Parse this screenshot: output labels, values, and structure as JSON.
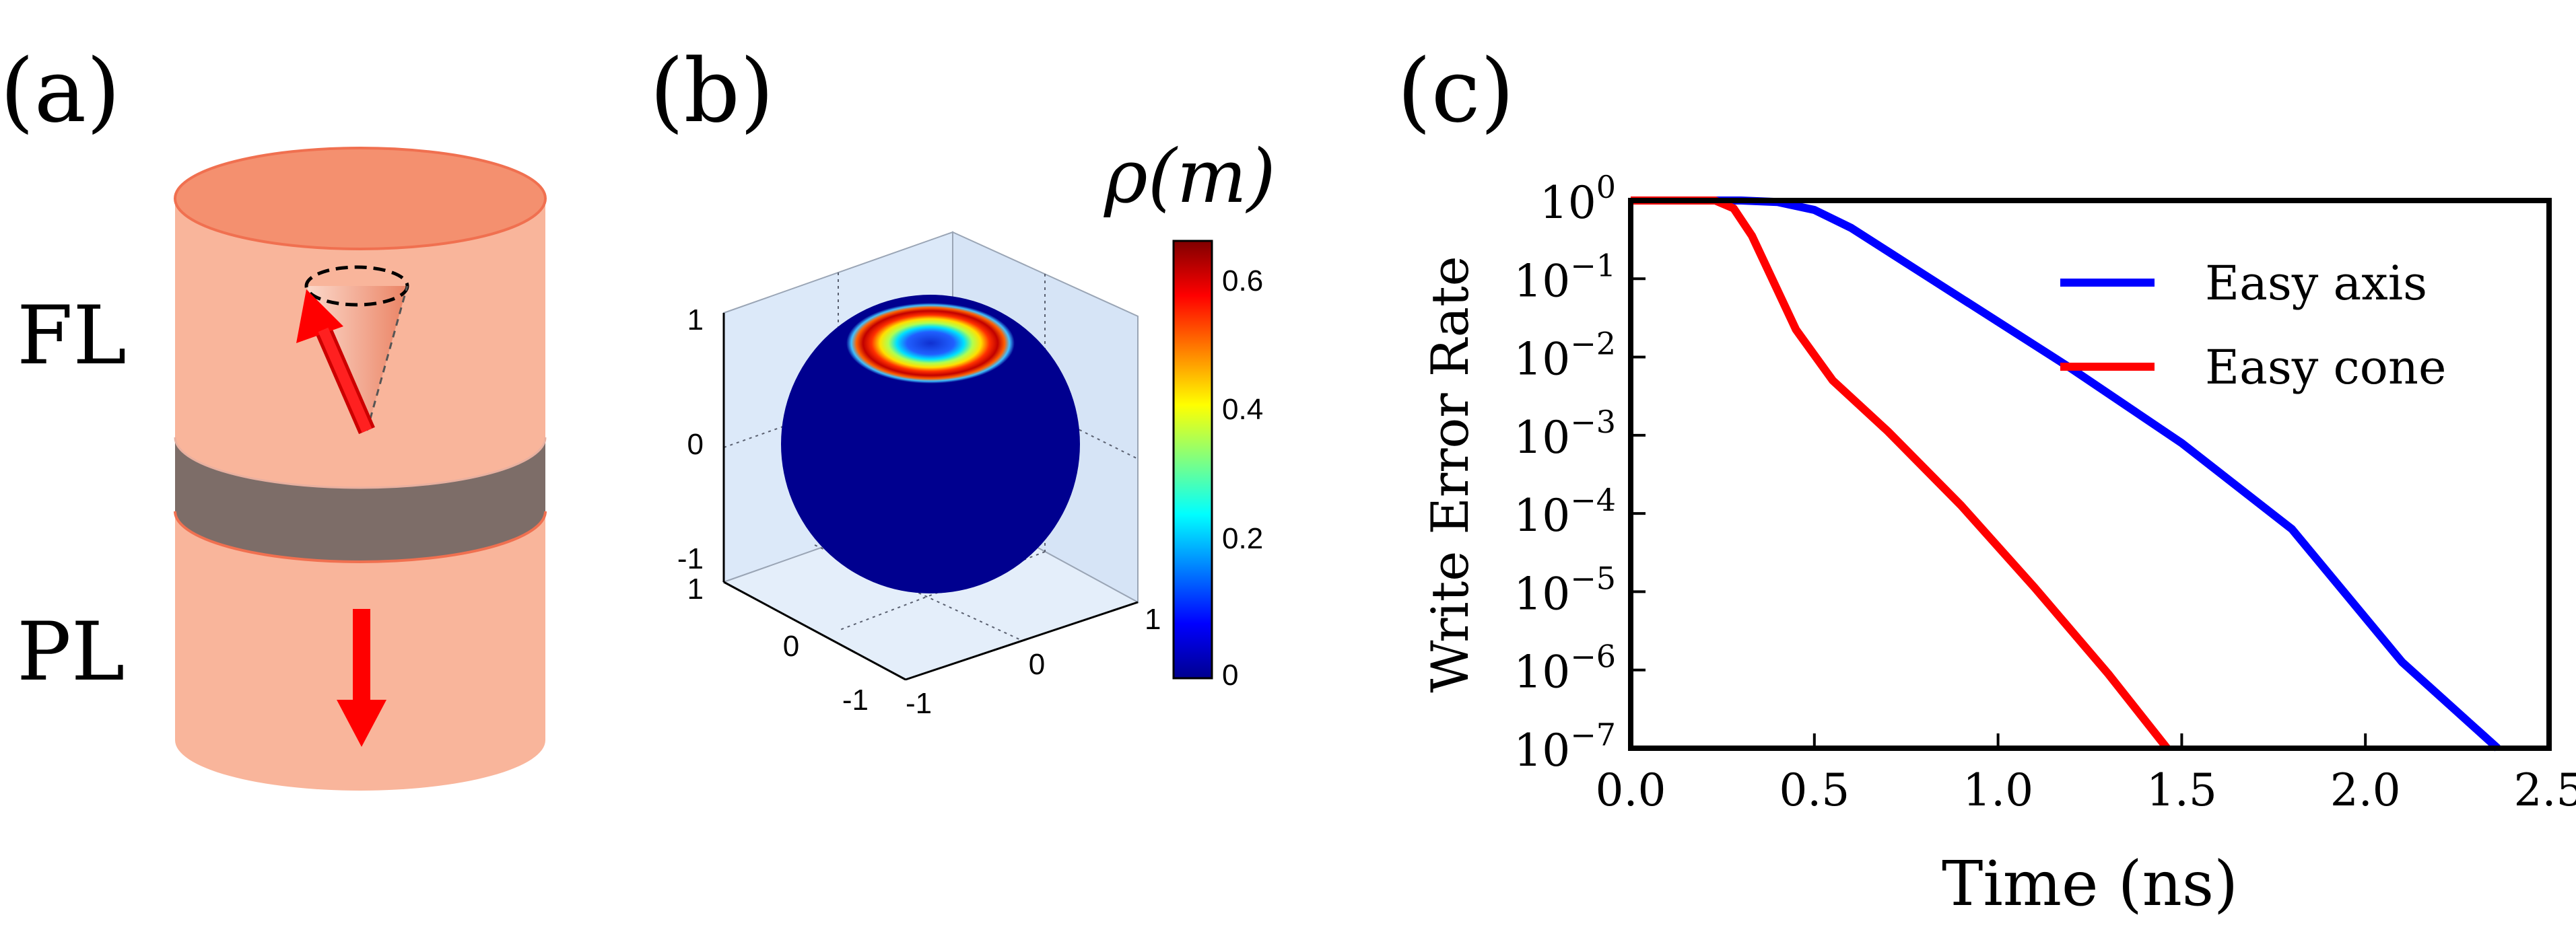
{
  "panels": {
    "a": {
      "label": "(a)",
      "free_layer": "FL",
      "pinned_layer": "PL"
    },
    "b": {
      "label": "(b)",
      "colorbar_title": "ρ(m)",
      "colorbar_ticks": [
        "0",
        "0.2",
        "0.4",
        "0.6"
      ],
      "z_ticks": [
        "1",
        "0",
        "-1"
      ],
      "x_ticks": [
        "1",
        "0",
        "-1"
      ],
      "y_ticks": [
        "-1",
        "0",
        "1"
      ]
    },
    "c": {
      "label": "(c)"
    }
  },
  "colors": {
    "cylinder_body": "#f9b59b",
    "cylinder_top": "#f4906f",
    "barrier": "#7d6d68",
    "arrow": "#ff0000",
    "sphere": "#00008f",
    "easy_axis": "#0000ff",
    "easy_cone": "#ff0000"
  },
  "chart_data": {
    "type": "line",
    "title": "",
    "xlabel": "Time (ns)",
    "ylabel": "Write Error Rate",
    "xlim": [
      0,
      2.5
    ],
    "ylim_log10": [
      -7,
      0
    ],
    "yscale": "log",
    "x_ticks": [
      "0.0",
      "0.5",
      "1.0",
      "1.5",
      "2.0",
      "2.5"
    ],
    "y_ticks": [
      {
        "base": "10",
        "exp": "0"
      },
      {
        "base": "10",
        "exp": "−1"
      },
      {
        "base": "10",
        "exp": "−2"
      },
      {
        "base": "10",
        "exp": "−3"
      },
      {
        "base": "10",
        "exp": "−4"
      },
      {
        "base": "10",
        "exp": "−5"
      },
      {
        "base": "10",
        "exp": "−6"
      },
      {
        "base": "10",
        "exp": "−7"
      }
    ],
    "legend_position": "upper right",
    "series": [
      {
        "name": "Easy axis",
        "color": "#0000ff",
        "x": [
          0,
          0.3,
          0.4,
          0.5,
          0.6,
          0.7,
          0.8,
          1.0,
          1.2,
          1.5,
          1.8,
          2.1,
          2.36
        ],
        "log10_y": [
          0,
          0,
          -0.02,
          -0.12,
          -0.35,
          -0.65,
          -0.95,
          -1.55,
          -2.15,
          -3.1,
          -4.2,
          -5.9,
          -7.0
        ]
      },
      {
        "name": "Easy cone",
        "color": "#ff0000",
        "x": [
          0,
          0.23,
          0.28,
          0.33,
          0.38,
          0.45,
          0.55,
          0.7,
          0.9,
          1.1,
          1.3,
          1.46
        ],
        "log10_y": [
          0,
          0,
          -0.1,
          -0.45,
          -0.95,
          -1.65,
          -2.3,
          -2.95,
          -3.9,
          -4.95,
          -6.05,
          -7.0
        ]
      }
    ]
  }
}
